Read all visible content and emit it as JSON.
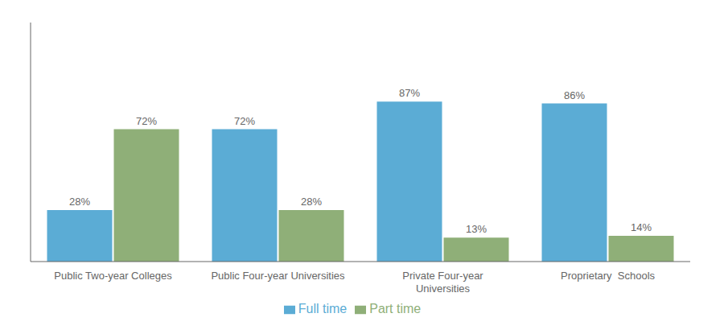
{
  "chart_data": {
    "type": "bar",
    "categories": [
      "Public Two-year Colleges",
      "Public Four-year Universities",
      "Private Four-year\nUniversities",
      "Proprietary  Schools"
    ],
    "series": [
      {
        "name": "Full time",
        "color": "#5BACD5",
        "values": [
          28,
          72,
          87,
          86
        ],
        "value_labels": [
          "28%",
          "72%",
          "87%",
          "86%"
        ]
      },
      {
        "name": "Part time",
        "color": "#8FAF78",
        "values": [
          72,
          28,
          13,
          14
        ],
        "value_labels": [
          "72%",
          "28%",
          "13%",
          "14%"
        ]
      }
    ],
    "ylim": [
      0,
      130
    ],
    "grid": false,
    "legend": "bottom",
    "data_labels": true,
    "tick_labels": "x"
  }
}
